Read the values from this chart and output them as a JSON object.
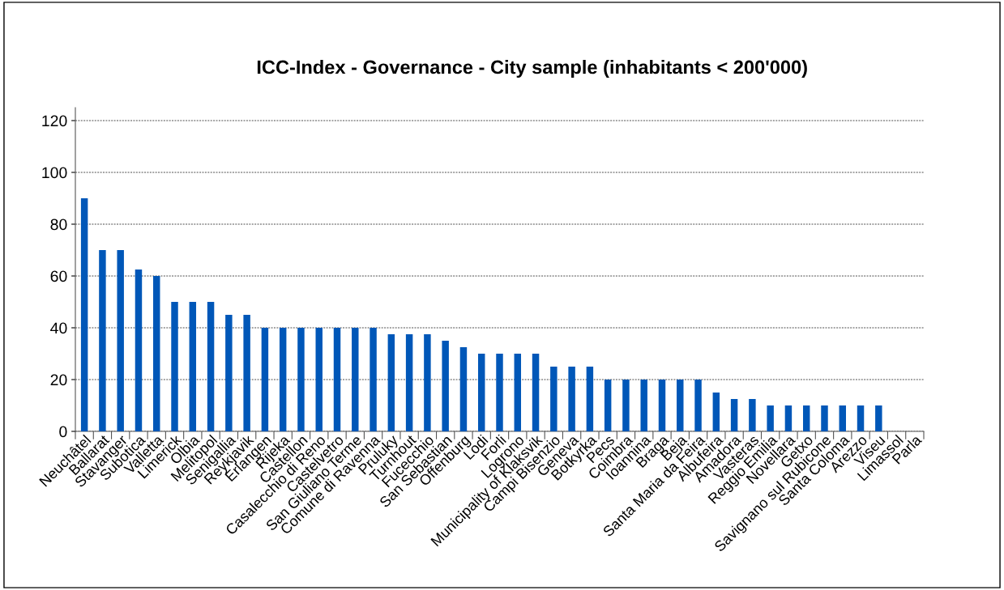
{
  "chart_data": {
    "type": "bar",
    "title": "ICC-Index - Governance - City sample (inhabitants < 200'000)",
    "categories": [
      "Neuchâtel",
      "Ballarat",
      "Stavanger",
      "Subotica",
      "Valletta",
      "Limerick",
      "Olbia",
      "Melitopol",
      "Senigallia",
      "Reykjavik",
      "Erlangen",
      "Rijeka",
      "Castellon",
      "Casalecchio di Reno",
      "Castelvetro",
      "San Giuliano Terme",
      "Comune di Ravenna",
      "Pruluky",
      "Turnhout",
      "Fucecchio",
      "San Sebastian",
      "Offenburg",
      "Lodi",
      "Forli",
      "Logrono",
      "Municipality of Klaksvik",
      "Campi Bisenzio",
      "Geneva",
      "Botkyrka",
      "Pecs",
      "Coimbra",
      "Ioannina",
      "Braga",
      "Beja",
      "Santa Maria da Feira",
      "Albufeira",
      "Amadora",
      "Vasteras",
      "Reggio Emilia",
      "Novellara",
      "Getxo",
      "Savignano sul Rubicone",
      "Santa Coloma",
      "Arezzo",
      "Viseu",
      "Limassol",
      "Parla"
    ],
    "values": [
      90,
      70,
      70,
      62.5,
      60,
      50,
      50,
      50,
      45,
      45,
      40,
      40,
      40,
      40,
      40,
      40,
      40,
      37.5,
      37.5,
      37.5,
      35,
      32.5,
      30,
      30,
      30,
      30,
      25,
      25,
      25,
      20,
      20,
      20,
      20,
      20,
      20,
      15,
      12.5,
      12.5,
      10,
      10,
      10,
      10,
      10,
      10,
      10,
      0,
      0
    ],
    "color": "#0057b8",
    "ylim": [
      0,
      125
    ],
    "yticks": [
      0,
      20,
      40,
      60,
      80,
      100,
      120
    ],
    "grid": "y"
  }
}
